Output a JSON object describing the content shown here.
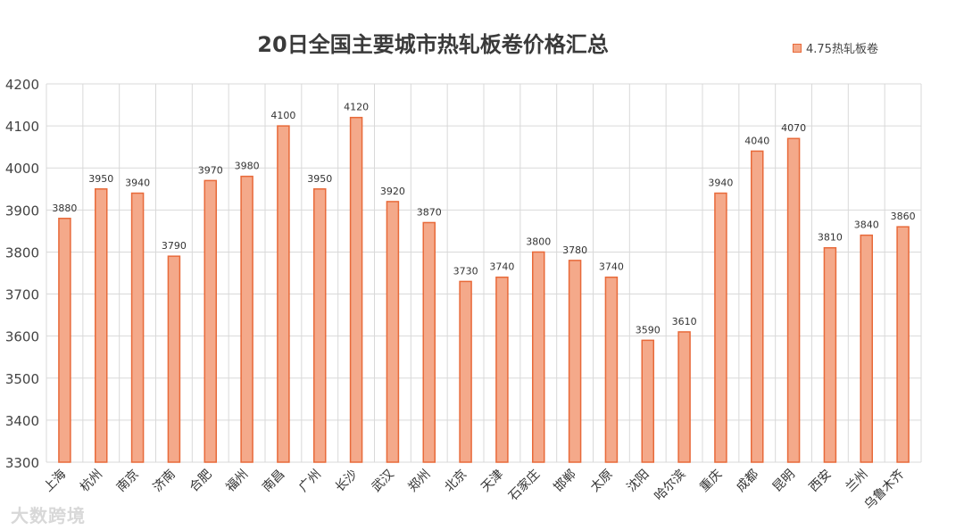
{
  "chart_data": {
    "type": "bar",
    "title": "20日全国主要城市热轧板卷价格汇总",
    "legend_position": "top-right",
    "grid": true,
    "ylim": [
      3300,
      4200
    ],
    "yticks": [
      "3300",
      "3400",
      "3500",
      "3600",
      "3700",
      "3800",
      "3900",
      "4000",
      "4100",
      "4200"
    ],
    "categories": [
      "上海",
      "杭州",
      "南京",
      "济南",
      "合肥",
      "福州",
      "南昌",
      "广州",
      "长沙",
      "武汉",
      "郑州",
      "北京",
      "天津",
      "石家庄",
      "邯郸",
      "太原",
      "沈阳",
      "哈尔滨",
      "重庆",
      "成都",
      "昆明",
      "西安",
      "兰州",
      "乌鲁木齐"
    ],
    "series": [
      {
        "name": "4.75热轧板卷",
        "values": [
          3880,
          3950,
          3940,
          3790,
          3970,
          3980,
          4100,
          3950,
          4120,
          3920,
          3870,
          3730,
          3740,
          3800,
          3780,
          3740,
          3590,
          3610,
          3940,
          4040,
          4070,
          3810,
          3840,
          3860
        ],
        "labels": [
          "3880",
          "3950",
          "3940",
          "3790",
          "3970",
          "3980",
          "4100",
          "3950",
          "4120",
          "3920",
          "3870",
          "3730",
          "3740",
          "3800",
          "3780",
          "3740",
          "3590",
          "3610",
          "3940",
          "4040",
          "4070",
          "3810",
          "3840",
          "3860"
        ]
      }
    ],
    "colors": {
      "bar_fill": "#f4a98a",
      "bar_stroke": "#e86a3a",
      "grid": "#d9d9d9"
    }
  },
  "watermark": "大数跨境"
}
